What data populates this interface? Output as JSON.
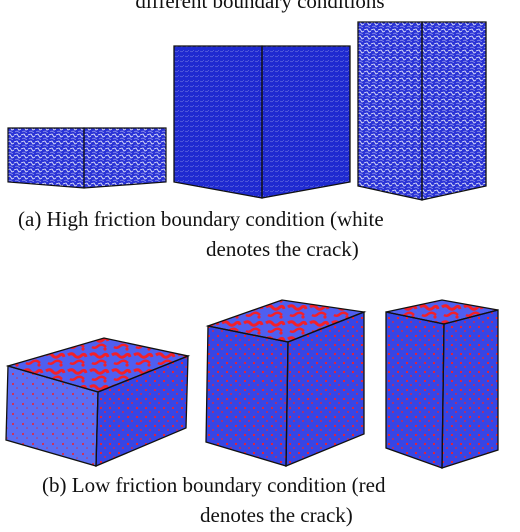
{
  "header": {
    "text": "different boundary conditions"
  },
  "panel_a": {
    "caption_line1": "(a)   High friction boundary condition (white",
    "caption_line2": "denotes the crack)"
  },
  "panel_b": {
    "caption_line1": "(b)   Low friction boundary condition (red",
    "caption_line2": "denotes the crack)"
  },
  "colors": {
    "specimen_blue": "#2a33d6",
    "specimen_light_blue": "#5a6ef2",
    "crack_red": "#f2202a",
    "crack_white": "#ffffff",
    "edge": "#111111"
  }
}
